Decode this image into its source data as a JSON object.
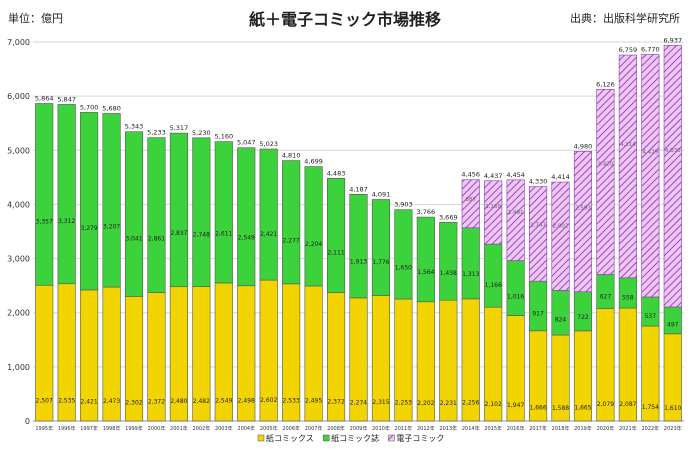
{
  "header": {
    "unit_label": "単位：億円",
    "title": "紙＋電子コミック市場推移",
    "source": "出典：出版科学研究所"
  },
  "chart_data": {
    "type": "bar",
    "stacked": true,
    "categories": [
      "1995年",
      "1996年",
      "1997年",
      "1998年",
      "1999年",
      "2000年",
      "2001年",
      "2002年",
      "2003年",
      "2004年",
      "2005年",
      "2006年",
      "2007年",
      "2008年",
      "2009年",
      "2010年",
      "2011年",
      "2012年",
      "2013年",
      "2014年",
      "2015年",
      "2016年",
      "2017年",
      "2018年",
      "2019年",
      "2020年",
      "2021年",
      "2022年",
      "2023年"
    ],
    "series": [
      {
        "name": "紙コミックス",
        "color": "#f2d400",
        "values": [
          2507,
          2535,
          2421,
          2473,
          2302,
          2372,
          2480,
          2482,
          2549,
          2498,
          2602,
          2533,
          2495,
          2372,
          2274,
          2315,
          2253,
          2202,
          2231,
          2256,
          2102,
          1947,
          1666,
          1588,
          1665,
          2079,
          2087,
          1754,
          1610
        ]
      },
      {
        "name": "紙コミック誌",
        "color": "#3cd23c",
        "values": [
          3357,
          3312,
          3279,
          3207,
          3041,
          2861,
          2837,
          2748,
          2611,
          2549,
          2421,
          2277,
          2204,
          2111,
          1913,
          1776,
          1650,
          1564,
          1438,
          1313,
          1166,
          1016,
          917,
          824,
          722,
          627,
          558,
          537,
          497
        ]
      },
      {
        "name": "電子コミック",
        "color": "#cc66e0",
        "pattern": "hatch",
        "values": [
          null,
          null,
          null,
          null,
          null,
          null,
          null,
          null,
          null,
          null,
          null,
          null,
          null,
          null,
          null,
          null,
          null,
          null,
          null,
          887,
          1169,
          1491,
          1747,
          2002,
          2593,
          3420,
          4114,
          4479,
          4830
        ]
      }
    ],
    "totals": [
      5864,
      5847,
      5700,
      5680,
      5343,
      5233,
      5317,
      5230,
      5160,
      5047,
      5023,
      4810,
      4699,
      4483,
      4187,
      4091,
      3903,
      3766,
      3669,
      4456,
      4437,
      4454,
      4330,
      4414,
      4980,
      6126,
      6759,
      6770,
      6937
    ],
    "y_ticks": [
      0,
      1000,
      2000,
      3000,
      4000,
      5000,
      6000,
      7000
    ],
    "ylim": [
      0,
      7000
    ],
    "grid": true,
    "legend_position": "bottom-center",
    "legend": [
      "紙コミックス",
      "紙コミック誌",
      "電子コミック"
    ]
  }
}
